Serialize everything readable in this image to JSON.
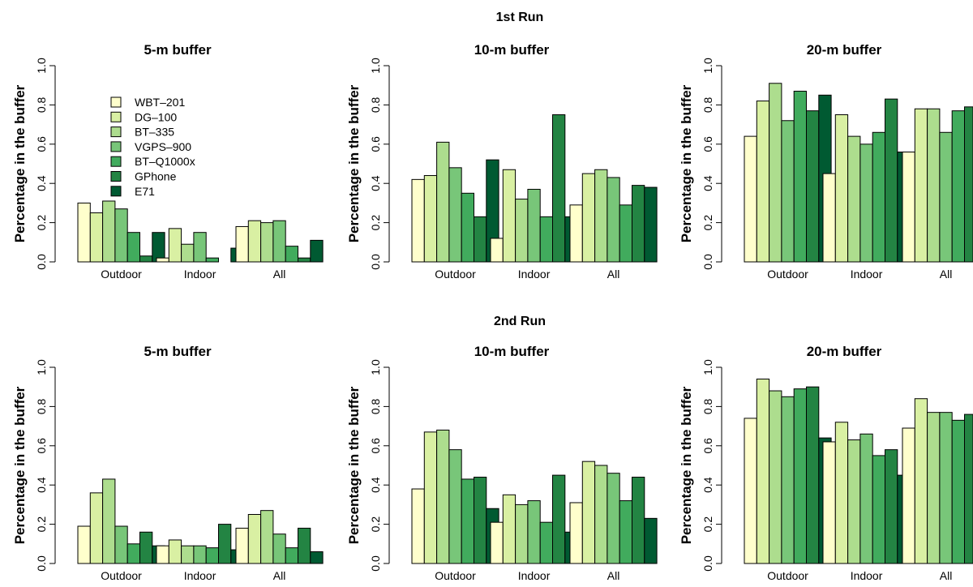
{
  "figure": {
    "runs": [
      {
        "title": "1st Run"
      },
      {
        "title": "2nd Run"
      }
    ]
  },
  "legend": {
    "entries": [
      {
        "label": "WBT–201",
        "color": "#ffffcc"
      },
      {
        "label": "DG–100",
        "color": "#d9f0a3"
      },
      {
        "label": "BT–335",
        "color": "#addd8e"
      },
      {
        "label": "VGPS–900",
        "color": "#78c679"
      },
      {
        "label": "BT–Q1000x",
        "color": "#41ab5d"
      },
      {
        "label": "GPhone",
        "color": "#238443"
      },
      {
        "label": "E71",
        "color": "#005a32"
      }
    ]
  },
  "chart_data": [
    {
      "type": "bar",
      "run": "1st Run",
      "title": "5-m buffer",
      "ylabel": "Percentage in the buffer",
      "ylim": [
        0,
        1
      ],
      "yticks": [
        "0.0",
        "0.2",
        "0.4",
        "0.6",
        "0.8",
        "1.0"
      ],
      "categories": [
        "Outdoor",
        "Indoor",
        "All"
      ],
      "series": [
        {
          "name": "WBT–201",
          "values": [
            0.3,
            0.02,
            0.18
          ]
        },
        {
          "name": "DG–100",
          "values": [
            0.25,
            0.17,
            0.21
          ]
        },
        {
          "name": "BT–335",
          "values": [
            0.31,
            0.09,
            0.2
          ]
        },
        {
          "name": "VGPS–900",
          "values": [
            0.27,
            0.15,
            0.21
          ]
        },
        {
          "name": "BT–Q1000x",
          "values": [
            0.15,
            0.02,
            0.08
          ]
        },
        {
          "name": "GPhone",
          "values": [
            0.03,
            0.0,
            0.02
          ]
        },
        {
          "name": "E71",
          "values": [
            0.15,
            0.07,
            0.11
          ]
        }
      ]
    },
    {
      "type": "bar",
      "run": "1st Run",
      "title": "10-m buffer",
      "ylabel": "Percentage in the buffer",
      "ylim": [
        0,
        1
      ],
      "yticks": [
        "0.0",
        "0.2",
        "0.4",
        "0.6",
        "0.8",
        "1.0"
      ],
      "categories": [
        "Outdoor",
        "Indoor",
        "All"
      ],
      "series": [
        {
          "name": "WBT–201",
          "values": [
            0.42,
            0.12,
            0.29
          ]
        },
        {
          "name": "DG–100",
          "values": [
            0.44,
            0.47,
            0.45
          ]
        },
        {
          "name": "BT–335",
          "values": [
            0.61,
            0.32,
            0.47
          ]
        },
        {
          "name": "VGPS–900",
          "values": [
            0.48,
            0.37,
            0.43
          ]
        },
        {
          "name": "BT–Q1000x",
          "values": [
            0.35,
            0.23,
            0.29
          ]
        },
        {
          "name": "GPhone",
          "values": [
            0.23,
            0.75,
            0.39
          ]
        },
        {
          "name": "E71",
          "values": [
            0.52,
            0.23,
            0.38
          ]
        }
      ]
    },
    {
      "type": "bar",
      "run": "1st Run",
      "title": "20-m buffer",
      "ylabel": "Percentage in the buffer",
      "ylim": [
        0,
        1
      ],
      "yticks": [
        "0.0",
        "0.2",
        "0.4",
        "0.6",
        "0.8",
        "1.0"
      ],
      "categories": [
        "Outdoor",
        "Indoor",
        "All"
      ],
      "series": [
        {
          "name": "WBT–201",
          "values": [
            0.64,
            0.45,
            0.56
          ]
        },
        {
          "name": "DG–100",
          "values": [
            0.82,
            0.75,
            0.78
          ]
        },
        {
          "name": "BT–335",
          "values": [
            0.91,
            0.64,
            0.78
          ]
        },
        {
          "name": "VGPS–900",
          "values": [
            0.72,
            0.6,
            0.66
          ]
        },
        {
          "name": "BT–Q1000x",
          "values": [
            0.87,
            0.66,
            0.77
          ]
        },
        {
          "name": "GPhone",
          "values": [
            0.77,
            0.83,
            0.79
          ]
        },
        {
          "name": "E71",
          "values": [
            0.85,
            0.56,
            0.72
          ]
        }
      ]
    },
    {
      "type": "bar",
      "run": "2nd Run",
      "title": "5-m buffer",
      "ylabel": "Percentage in the buffer",
      "ylim": [
        0,
        1
      ],
      "yticks": [
        "0.0",
        "0.2",
        "0.4",
        "0.6",
        "0.8",
        "1.0"
      ],
      "categories": [
        "Outdoor",
        "Indoor",
        "All"
      ],
      "series": [
        {
          "name": "WBT–201",
          "values": [
            0.19,
            0.09,
            0.18
          ]
        },
        {
          "name": "DG–100",
          "values": [
            0.36,
            0.12,
            0.25
          ]
        },
        {
          "name": "BT–335",
          "values": [
            0.43,
            0.09,
            0.27
          ]
        },
        {
          "name": "VGPS–900",
          "values": [
            0.19,
            0.09,
            0.15
          ]
        },
        {
          "name": "BT–Q1000x",
          "values": [
            0.1,
            0.08,
            0.08
          ]
        },
        {
          "name": "GPhone",
          "values": [
            0.16,
            0.2,
            0.18
          ]
        },
        {
          "name": "E71",
          "values": [
            0.09,
            0.07,
            0.06
          ]
        }
      ]
    },
    {
      "type": "bar",
      "run": "2nd Run",
      "title": "10-m buffer",
      "ylabel": "Percentage in the buffer",
      "ylim": [
        0,
        1
      ],
      "yticks": [
        "0.0",
        "0.2",
        "0.4",
        "0.6",
        "0.8",
        "1.0"
      ],
      "categories": [
        "Outdoor",
        "Indoor",
        "All"
      ],
      "series": [
        {
          "name": "WBT–201",
          "values": [
            0.38,
            0.21,
            0.31
          ]
        },
        {
          "name": "DG–100",
          "values": [
            0.67,
            0.35,
            0.52
          ]
        },
        {
          "name": "BT–335",
          "values": [
            0.68,
            0.3,
            0.5
          ]
        },
        {
          "name": "VGPS–900",
          "values": [
            0.58,
            0.32,
            0.46
          ]
        },
        {
          "name": "BT–Q1000x",
          "values": [
            0.43,
            0.21,
            0.32
          ]
        },
        {
          "name": "GPhone",
          "values": [
            0.44,
            0.45,
            0.44
          ]
        },
        {
          "name": "E71",
          "values": [
            0.28,
            0.16,
            0.23
          ]
        }
      ]
    },
    {
      "type": "bar",
      "run": "2nd Run",
      "title": "20-m buffer",
      "ylabel": "Percentage in the buffer",
      "ylim": [
        0,
        1
      ],
      "yticks": [
        "0.0",
        "0.2",
        "0.4",
        "0.6",
        "0.8",
        "1.0"
      ],
      "categories": [
        "Outdoor",
        "Indoor",
        "All"
      ],
      "series": [
        {
          "name": "WBT–201",
          "values": [
            0.74,
            0.62,
            0.69
          ]
        },
        {
          "name": "DG–100",
          "values": [
            0.94,
            0.72,
            0.84
          ]
        },
        {
          "name": "BT–335",
          "values": [
            0.88,
            0.63,
            0.77
          ]
        },
        {
          "name": "VGPS–900",
          "values": [
            0.85,
            0.66,
            0.77
          ]
        },
        {
          "name": "BT–Q1000x",
          "values": [
            0.89,
            0.55,
            0.73
          ]
        },
        {
          "name": "GPhone",
          "values": [
            0.9,
            0.58,
            0.76
          ]
        },
        {
          "name": "E71",
          "values": [
            0.64,
            0.45,
            0.57
          ]
        }
      ]
    }
  ]
}
